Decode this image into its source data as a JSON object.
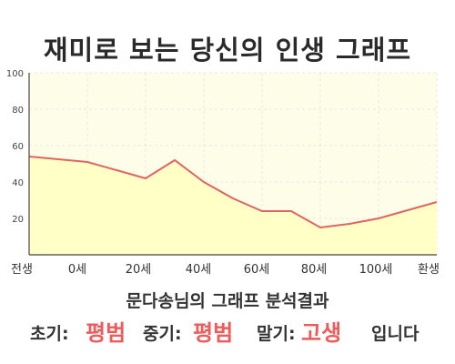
{
  "title": "재미로 보는 당신의 인생 그래프",
  "chart_data": {
    "type": "area",
    "x_labels": [
      "전생",
      "0세",
      "20세",
      "40세",
      "60세",
      "80세",
      "100세",
      "환생"
    ],
    "y_ticks": [
      20,
      40,
      60,
      80,
      100
    ],
    "ylim": [
      0,
      100
    ],
    "grid": true,
    "x": [
      -20,
      0,
      20,
      30,
      40,
      50,
      60,
      70,
      80,
      90,
      100,
      120
    ],
    "values": [
      54,
      51,
      42,
      52,
      40,
      31,
      24,
      24,
      15,
      17,
      20,
      29
    ],
    "colors": {
      "line": "#e06464",
      "fill": "#ffffc6",
      "plot_bg": "#fefee8",
      "grid": "#e6e6e6"
    }
  },
  "summary": {
    "heading": "문다송님의 그래프 분석결과",
    "early_label": "초기:",
    "early_value": "평범",
    "middle_label": "중기:",
    "middle_value": "평범",
    "late_label": "말기:",
    "late_value": "고생",
    "suffix": "입니다"
  }
}
